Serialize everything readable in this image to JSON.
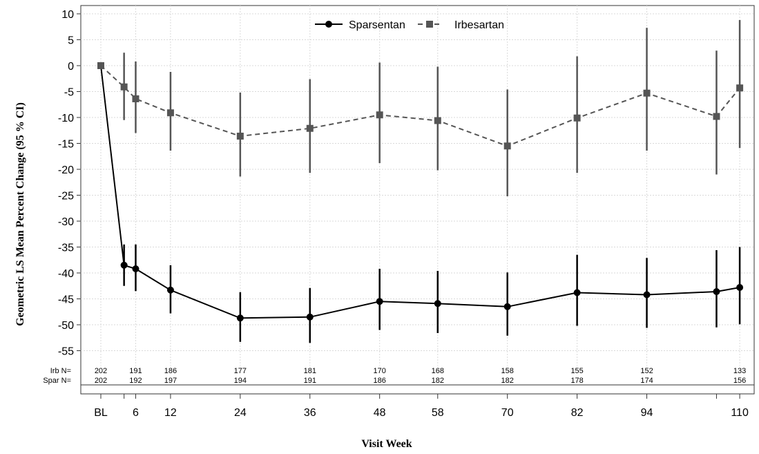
{
  "chart_data": {
    "type": "line",
    "xlabel": "Visit Week",
    "ylabel": "Geometric LS Mean Percent Change (95 % CI)",
    "ylim": [
      -60,
      10
    ],
    "yticks": [
      "10",
      "5",
      "0",
      "-5",
      "-10",
      "-15",
      "-20",
      "-25",
      "-30",
      "-35",
      "-40",
      "-45",
      "-50",
      "-55"
    ],
    "xticks": [
      "BL",
      "6",
      "12",
      "24",
      "36",
      "48",
      "58",
      "70",
      "82",
      "94",
      "110"
    ],
    "xtick_weeks": [
      0,
      6,
      12,
      24,
      36,
      48,
      58,
      70,
      82,
      94,
      110
    ],
    "grid": true,
    "legend_position": "top-center",
    "series": [
      {
        "name": "Sparsentan",
        "marker": "circle",
        "line": "solid",
        "color": "#000000",
        "points": [
          {
            "x": 0,
            "y": 0,
            "lo": 0,
            "hi": 0
          },
          {
            "x": 4,
            "y": -38.5,
            "lo": -42.5,
            "hi": -34.5
          },
          {
            "x": 6,
            "y": -39.2,
            "lo": -43.5,
            "hi": -34.5
          },
          {
            "x": 12,
            "y": -43.3,
            "lo": -47.8,
            "hi": -38.5
          },
          {
            "x": 24,
            "y": -48.7,
            "lo": -53.3,
            "hi": -43.7
          },
          {
            "x": 36,
            "y": -48.5,
            "lo": -53.5,
            "hi": -42.9
          },
          {
            "x": 48,
            "y": -45.5,
            "lo": -51.0,
            "hi": -39.2
          },
          {
            "x": 58,
            "y": -45.9,
            "lo": -51.6,
            "hi": -39.6
          },
          {
            "x": 70,
            "y": -46.5,
            "lo": -52.1,
            "hi": -39.9
          },
          {
            "x": 82,
            "y": -43.8,
            "lo": -50.2,
            "hi": -36.5
          },
          {
            "x": 94,
            "y": -44.2,
            "lo": -50.6,
            "hi": -37.1
          },
          {
            "x": 106,
            "y": -43.6,
            "lo": -50.5,
            "hi": -35.6
          },
          {
            "x": 110,
            "y": -42.8,
            "lo": -49.9,
            "hi": -35.0
          }
        ]
      },
      {
        "name": "Irbesartan",
        "marker": "square",
        "line": "dashed",
        "color": "#555555",
        "points": [
          {
            "x": 0,
            "y": 0,
            "lo": 0,
            "hi": 0
          },
          {
            "x": 4,
            "y": -4.1,
            "lo": -10.5,
            "hi": 2.5
          },
          {
            "x": 6,
            "y": -6.4,
            "lo": -13.0,
            "hi": 0.8
          },
          {
            "x": 12,
            "y": -9.1,
            "lo": -16.4,
            "hi": -1.2
          },
          {
            "x": 24,
            "y": -13.6,
            "lo": -21.4,
            "hi": -5.2
          },
          {
            "x": 36,
            "y": -12.1,
            "lo": -20.7,
            "hi": -2.6
          },
          {
            "x": 48,
            "y": -9.5,
            "lo": -18.8,
            "hi": 0.6
          },
          {
            "x": 58,
            "y": -10.6,
            "lo": -20.2,
            "hi": -0.2
          },
          {
            "x": 70,
            "y": -15.5,
            "lo": -25.2,
            "hi": -4.6
          },
          {
            "x": 82,
            "y": -10.1,
            "lo": -20.7,
            "hi": 1.8
          },
          {
            "x": 94,
            "y": -5.3,
            "lo": -16.4,
            "hi": 7.3
          },
          {
            "x": 106,
            "y": -9.8,
            "lo": -21.0,
            "hi": 2.9
          },
          {
            "x": 110,
            "y": -4.3,
            "lo": -15.9,
            "hi": 8.8
          }
        ]
      }
    ],
    "n_table": {
      "rows": [
        {
          "label": "Irb N=",
          "values": [
            "202",
            "191",
            "186",
            "177",
            "181",
            "170",
            "168",
            "158",
            "155",
            "152",
            "133"
          ]
        },
        {
          "label": "Spar N=",
          "values": [
            "202",
            "192",
            "197",
            "194",
            "191",
            "186",
            "182",
            "182",
            "178",
            "174",
            "156"
          ]
        }
      ]
    }
  }
}
